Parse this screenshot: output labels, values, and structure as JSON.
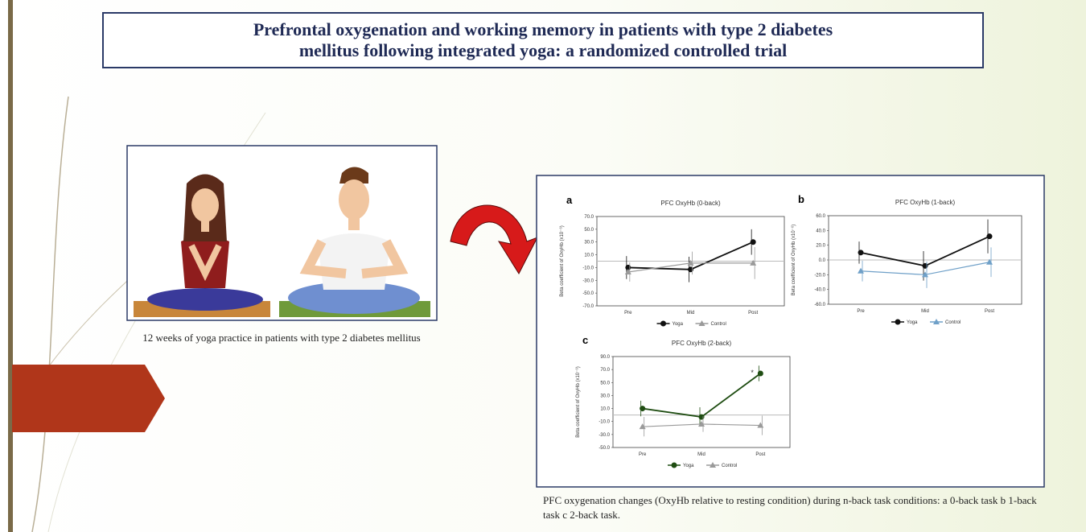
{
  "title": "Prefrontal oxygenation and working memory in patients with type 2 diabetes mellitus following integrated yoga: a randomized controlled trial",
  "image_caption": "12 weeks of yoga practice in patients with type 2 diabetes mellitus",
  "figure_caption": "PFC oxygenation changes (OxyHb relative to resting condition) during n-back task conditions: a 0-back task b 1-back task c 2-back task.",
  "chart_data": [
    {
      "type": "line",
      "panel": "a",
      "title": "PFC OxyHb (0-back)",
      "y_label": "Beta coefficient of OxyHb (x10⁻⁶)",
      "categories": [
        "Pre",
        "Mid",
        "Post"
      ],
      "series": [
        {
          "name": "Yoga",
          "color": "#111111",
          "marker": "circle",
          "values": [
            -10,
            -13,
            30
          ],
          "errors": [
            18,
            20,
            20
          ]
        },
        {
          "name": "Control",
          "color": "#9a9a9a",
          "marker": "triangle",
          "values": [
            -17,
            -3,
            -3
          ],
          "errors": [
            15,
            18,
            25
          ]
        }
      ],
      "ylim": [
        -70,
        70
      ],
      "yticks": [
        {
          "value": -70,
          "label": "-70.0"
        },
        {
          "value": -50,
          "label": "-50.0"
        },
        {
          "value": -30,
          "label": "-30.0"
        },
        {
          "value": -10,
          "label": "-10.0"
        },
        {
          "value": 10,
          "label": "10.0"
        },
        {
          "value": 30,
          "label": "30.0"
        },
        {
          "value": 50,
          "label": "50.0"
        },
        {
          "value": 70,
          "label": "70.0"
        }
      ]
    },
    {
      "type": "line",
      "panel": "b",
      "title": "PFC OxyHb (1-back)",
      "y_label": "Beta coefficient of OxyHb (x10⁻⁶)",
      "categories": [
        "Pre",
        "Mid",
        "Post"
      ],
      "series": [
        {
          "name": "Yoga",
          "color": "#111111",
          "marker": "circle",
          "values": [
            10,
            -8,
            32
          ],
          "errors": [
            15,
            20,
            23
          ]
        },
        {
          "name": "Control",
          "color": "#6fa0c8",
          "marker": "triangle",
          "values": [
            -15,
            -20,
            -3
          ],
          "errors": [
            14,
            18,
            20
          ]
        }
      ],
      "ylim": [
        -60,
        60
      ],
      "yticks": [
        {
          "value": -60,
          "label": "-60.0"
        },
        {
          "value": -40,
          "label": "-40.0"
        },
        {
          "value": -20,
          "label": "-20.0"
        },
        {
          "value": 0,
          "label": "0.0"
        },
        {
          "value": 20,
          "label": "20.0"
        },
        {
          "value": 40,
          "label": "40.0"
        },
        {
          "value": 60,
          "label": "60.0"
        }
      ]
    },
    {
      "type": "line",
      "panel": "c",
      "title": "PFC OxyHb (2-back)",
      "y_label": "Beta coefficient of OxyHb (x10⁻⁶)",
      "annotation": "*",
      "categories": [
        "Pre",
        "Mid",
        "Post"
      ],
      "series": [
        {
          "name": "Yoga",
          "color": "#1f4d12",
          "marker": "circle",
          "values": [
            10,
            -3,
            64
          ],
          "errors": [
            12,
            15,
            12
          ]
        },
        {
          "name": "Control",
          "color": "#9a9a9a",
          "marker": "triangle",
          "values": [
            -18,
            -14,
            -16
          ],
          "errors": [
            15,
            12,
            15
          ]
        }
      ],
      "ylim": [
        -50,
        90
      ],
      "yticks": [
        {
          "value": -50,
          "label": "-50.0"
        },
        {
          "value": -30,
          "label": "-30.0"
        },
        {
          "value": -10,
          "label": "-10.0"
        },
        {
          "value": 10,
          "label": "10.0"
        },
        {
          "value": 30,
          "label": "30.0"
        },
        {
          "value": 50,
          "label": "50.0"
        },
        {
          "value": 70,
          "label": "70.0"
        },
        {
          "value": 90,
          "label": "90.0"
        }
      ]
    }
  ]
}
